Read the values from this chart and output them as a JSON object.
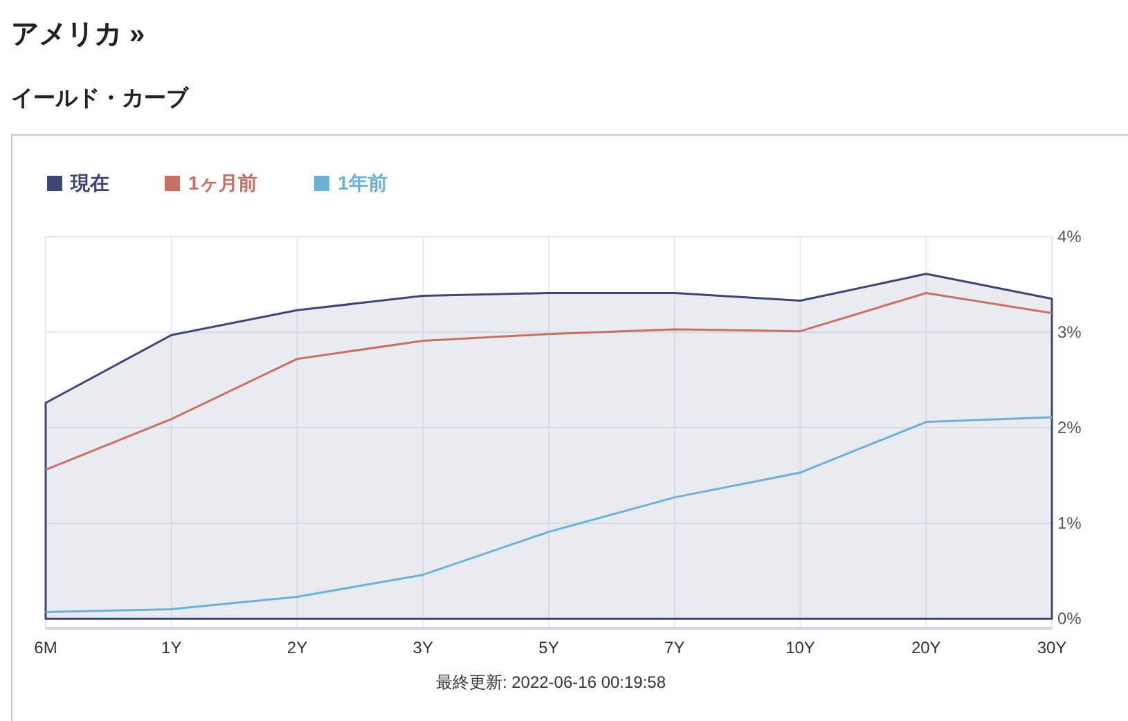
{
  "chart_data": {
    "type": "line",
    "title": "アメリカ »",
    "subtitle": "イールド・カーブ",
    "categories": [
      "6M",
      "1Y",
      "2Y",
      "3Y",
      "5Y",
      "7Y",
      "10Y",
      "20Y",
      "30Y"
    ],
    "series": [
      {
        "name": "現在",
        "type": "area",
        "color": "#3d4677",
        "values": [
          2.26,
          2.97,
          3.23,
          3.38,
          3.41,
          3.41,
          3.33,
          3.61,
          3.35
        ]
      },
      {
        "name": "1ヶ月前",
        "type": "line",
        "color": "#c87064",
        "values": [
          1.56,
          2.09,
          2.72,
          2.91,
          2.98,
          3.03,
          3.01,
          3.41,
          3.2
        ]
      },
      {
        "name": "1年前",
        "color": "#6ab3d6",
        "values": [
          0.07,
          0.1,
          0.23,
          0.46,
          0.91,
          1.27,
          1.53,
          2.06,
          2.11
        ]
      }
    ],
    "ylim": [
      -0.1,
      4
    ],
    "yticks": [
      {
        "value": 0,
        "label": "0%"
      },
      {
        "value": 1,
        "label": "1%"
      },
      {
        "value": 2,
        "label": "2%"
      },
      {
        "value": 3,
        "label": "3%"
      },
      {
        "value": 4,
        "label": "4%"
      }
    ],
    "grid": true,
    "legend": "top left",
    "annotations": [
      "最終更新: 2022-06-16 00:19:58"
    ]
  }
}
